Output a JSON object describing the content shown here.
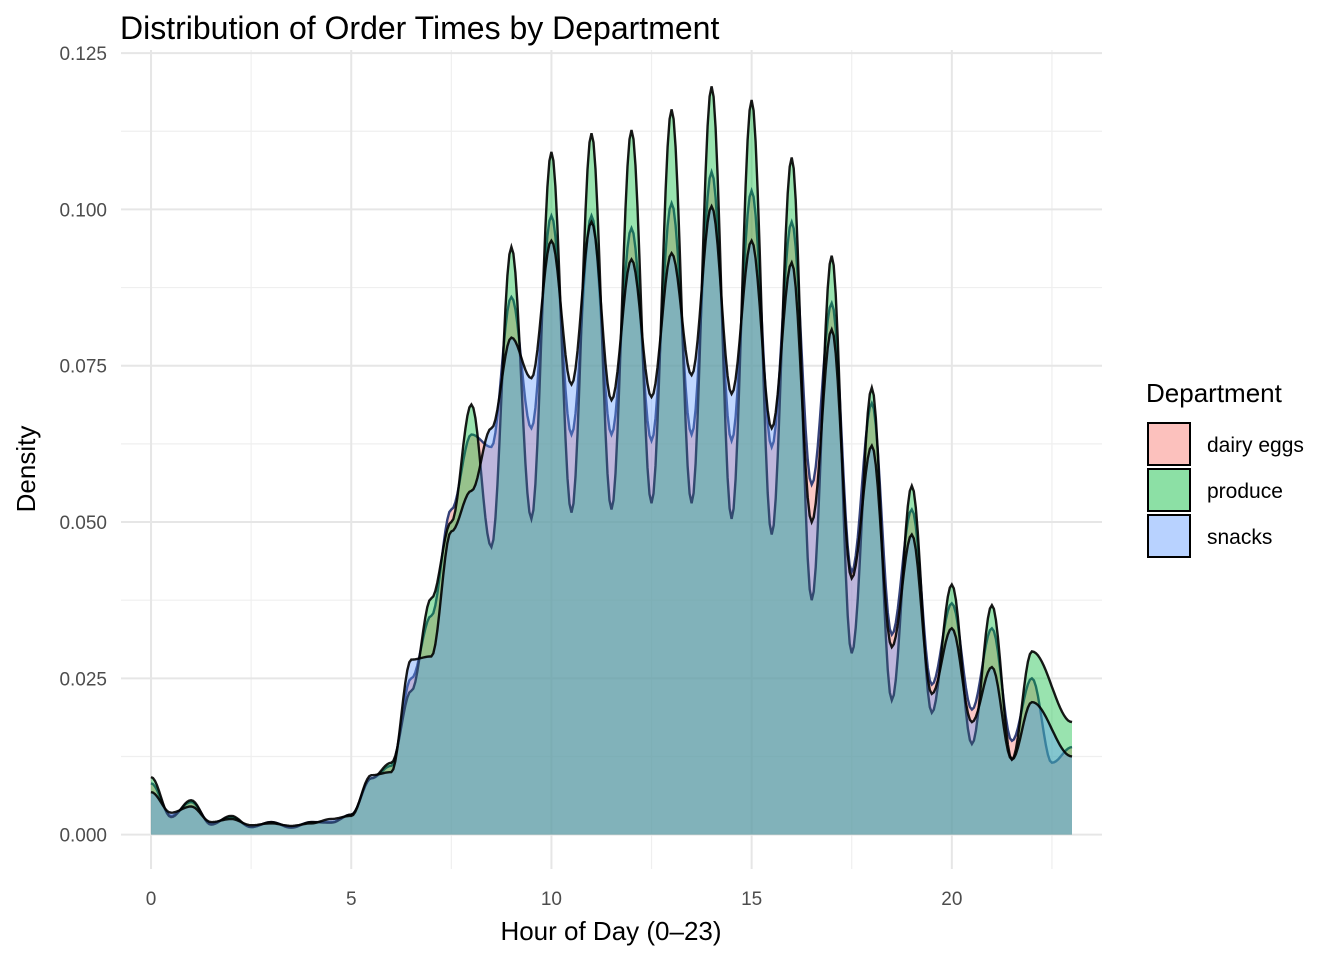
{
  "chart_data": {
    "type": "area",
    "title": "Distribution of Order Times by Department",
    "xlabel": "Hour of Day (0–23)",
    "ylabel": "Density",
    "xlim": [
      -0.75,
      23.75
    ],
    "ylim": [
      -0.0055,
      0.1255
    ],
    "x_ticks": [
      0,
      5,
      10,
      15,
      20
    ],
    "x_tick_labels": [
      "0",
      "5",
      "10",
      "15",
      "20"
    ],
    "y_ticks": [
      0,
      0.025,
      0.05,
      0.075,
      0.1,
      0.125
    ],
    "y_tick_labels": [
      "0.000",
      "0.025",
      "0.050",
      "0.075",
      "0.100",
      "0.125"
    ],
    "grid": true,
    "legend": {
      "title": "Department",
      "position": "right"
    },
    "x_range": [
      0,
      23
    ],
    "series": [
      {
        "name": "dairy eggs",
        "color": "#F8766D",
        "peaks": [
          0.0082,
          0.0052,
          0.0028,
          0.002,
          0.002,
          0.0032,
          0.011,
          0.035,
          0.064,
          0.086,
          0.099,
          0.099,
          0.097,
          0.101,
          0.106,
          0.103,
          0.098,
          0.085,
          0.069,
          0.052,
          0.037,
          0.033,
          0.025,
          0.014
        ],
        "valleys": [
          0.003,
          0.0018,
          0.0012,
          0.0012,
          0.002,
          0.009,
          0.025,
          0.052,
          0.062,
          0.065,
          0.064,
          0.064,
          0.063,
          0.064,
          0.063,
          0.062,
          0.056,
          0.042,
          0.032,
          0.024,
          0.02,
          0.015,
          0.0115
        ]
      },
      {
        "name": "produce",
        "color": "#00BA38",
        "peaks": [
          0.0092,
          0.0055,
          0.003,
          0.002,
          0.002,
          0.0032,
          0.0115,
          0.0378,
          0.0688,
          0.094,
          0.1092,
          0.1122,
          0.1127,
          0.116,
          0.1197,
          0.1175,
          0.1083,
          0.0926,
          0.0715,
          0.0558,
          0.04,
          0.0367,
          0.0293,
          0.018
        ],
        "valleys": [
          0.0028,
          0.0016,
          0.0012,
          0.0011,
          0.0019,
          0.009,
          0.023,
          0.05,
          0.046,
          0.0505,
          0.0515,
          0.052,
          0.053,
          0.053,
          0.0505,
          0.048,
          0.0375,
          0.029,
          0.0215,
          0.0195,
          0.0145,
          0.012
        ]
      },
      {
        "name": "snacks",
        "color": "#619CFF",
        "peaks": [
          0.0068,
          0.0045,
          0.0025,
          0.0018,
          0.0018,
          0.003,
          0.01,
          0.0285,
          0.055,
          0.0795,
          0.095,
          0.098,
          0.092,
          0.093,
          0.1005,
          0.095,
          0.0915,
          0.0808,
          0.0622,
          0.048,
          0.033,
          0.0268,
          0.0212,
          0.0125
        ],
        "valleys": [
          0.0035,
          0.002,
          0.0015,
          0.0014,
          0.0025,
          0.0095,
          0.028,
          0.0485,
          0.065,
          0.073,
          0.072,
          0.0695,
          0.07,
          0.0735,
          0.0705,
          0.065,
          0.05,
          0.041,
          0.03,
          0.0225,
          0.018,
          0.012
        ]
      }
    ]
  }
}
